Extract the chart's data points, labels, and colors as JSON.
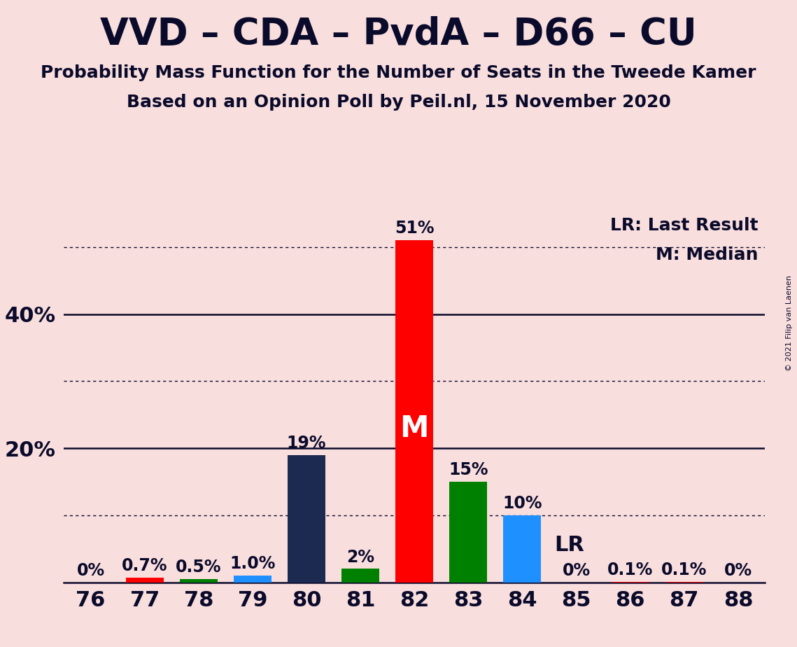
{
  "title": "VVD – CDA – PvdA – D66 – CU",
  "subtitle1": "Probability Mass Function for the Number of Seats in the Tweede Kamer",
  "subtitle2": "Based on an Opinion Poll by Peil.nl, 15 November 2020",
  "copyright": "© 2021 Filip van Laenen",
  "background_color": "#f9dede",
  "seats": [
    76,
    77,
    78,
    79,
    80,
    81,
    82,
    83,
    84,
    85,
    86,
    87,
    88
  ],
  "probabilities": [
    0.0,
    0.7,
    0.5,
    1.0,
    19.0,
    2.0,
    51.0,
    15.0,
    10.0,
    0.0,
    0.1,
    0.1,
    0.0
  ],
  "bar_colors": [
    "#ff0000",
    "#ff0000",
    "#008000",
    "#1e90ff",
    "#1c2951",
    "#008000",
    "#ff0000",
    "#008000",
    "#1e90ff",
    "#ff0000",
    "#ff0000",
    "#ff0000",
    "#ff0000"
  ],
  "labels": [
    "0%",
    "0.7%",
    "0.5%",
    "1.0%",
    "19%",
    "2%",
    "51%",
    "15%",
    "10%",
    "0%",
    "0.1%",
    "0.1%",
    "0%"
  ],
  "median_seat": 82,
  "lr_seat": 84,
  "lr_label": "LR",
  "legend_lr": "LR: Last Result",
  "legend_m": "M: Median",
  "median_label": "M",
  "ylim": [
    0,
    55
  ],
  "solid_lines": [
    20,
    40
  ],
  "dotted_lines": [
    10,
    30,
    50
  ],
  "title_fontsize": 38,
  "subtitle_fontsize": 18,
  "bar_label_fontsize": 17,
  "legend_fontsize": 18,
  "median_label_fontsize": 30,
  "lr_label_fontsize": 22,
  "ytick_fontsize": 22,
  "xtick_fontsize": 22
}
